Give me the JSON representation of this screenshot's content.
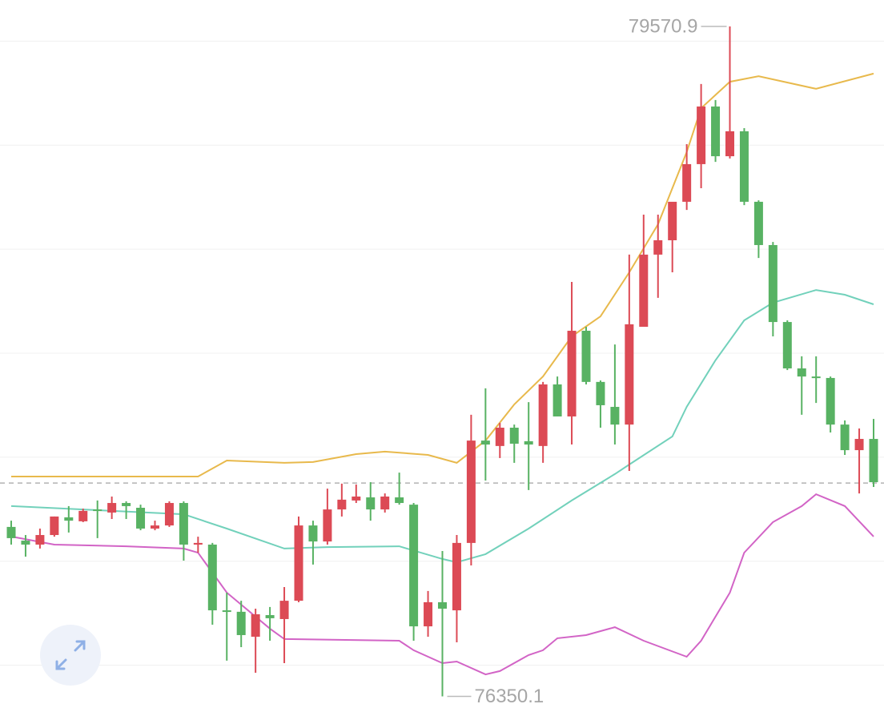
{
  "chart_data": {
    "type": "candlestick",
    "ylim": [
      76256,
      79698
    ],
    "grid_lines": [
      76500,
      77000,
      77500,
      78000,
      78500,
      79000,
      79500
    ],
    "current_price_line": 77376,
    "up_color": "#dc4a55",
    "down_color": "#58b263",
    "open": [
      77165,
      77099,
      77080,
      77126,
      77211,
      77192,
      77249,
      77234,
      77280,
      77257,
      77157,
      77172,
      77280,
      77080,
      77080,
      76764,
      76757,
      76637,
      76741,
      76722,
      76810,
      77172,
      77095,
      77249,
      77292,
      77307,
      77249,
      77307,
      77272,
      76687,
      76803,
      76764,
      77088,
      77580,
      77554,
      77642,
      77577,
      77554,
      77850,
      77696,
      78108,
      77862,
      77742,
      77657,
      78127,
      78474,
      78543,
      78728,
      78909,
      79186,
      78947,
      79067,
      78728,
      78520,
      78150,
      77927,
      77888,
      77881,
      77657,
      77534,
      77588
    ],
    "high": [
      77195,
      77126,
      77157,
      77215,
      77265,
      77253,
      77292,
      77311,
      77288,
      77272,
      77195,
      77288,
      77288,
      77118,
      77088,
      76849,
      76810,
      76772,
      76780,
      76876,
      77215,
      77195,
      77349,
      77373,
      77369,
      77380,
      77326,
      77426,
      77280,
      76857,
      77049,
      77126,
      77704,
      77831,
      77665,
      77657,
      77765,
      77862,
      77888,
      78343,
      78127,
      77869,
      78042,
      78474,
      78666,
      78666,
      78728,
      79005,
      79294,
      79217,
      79570.9,
      79082,
      78735,
      78535,
      78158,
      77985,
      77985,
      77888,
      77677,
      77638,
      77684
    ],
    "low": [
      77080,
      77022,
      77061,
      77118,
      77138,
      77188,
      77111,
      77203,
      77203,
      77149,
      77149,
      77165,
      77003,
      77041,
      76695,
      76522,
      76587,
      76464,
      76618,
      76510,
      76803,
      76984,
      77080,
      77215,
      77280,
      77195,
      77234,
      77272,
      76618,
      76637,
      76350.1,
      76610,
      76980,
      77388,
      77496,
      77473,
      77342,
      77473,
      77696,
      77561,
      77850,
      77642,
      77561,
      77434,
      78127,
      78266,
      78389,
      78689,
      78793,
      78920,
      78936,
      78712,
      78458,
      78081,
      77919,
      77704,
      77761,
      77619,
      77511,
      77326,
      77357
    ],
    "close": [
      77111,
      77080,
      77126,
      77215,
      77195,
      77242,
      77242,
      77280,
      77265,
      77157,
      77172,
      77280,
      77080,
      77088,
      76764,
      76760,
      76645,
      76745,
      76726,
      76810,
      77172,
      77095,
      77249,
      77296,
      77311,
      77249,
      77311,
      77280,
      76687,
      76803,
      76772,
      77088,
      77580,
      77561,
      77642,
      77565,
      77561,
      77850,
      77696,
      78108,
      77862,
      77750,
      77657,
      78139,
      78474,
      78543,
      78728,
      78909,
      79186,
      78947,
      79067,
      78728,
      78520,
      78150,
      77927,
      77888,
      77881,
      77657,
      77534,
      77588,
      77380
    ],
    "overlays": [
      {
        "color": "#e8b94c",
        "x": [
          0,
          13,
          15,
          19,
          21,
          24,
          26,
          29,
          31,
          33,
          35,
          37,
          39,
          41,
          43,
          45,
          47,
          48,
          50,
          52,
          56,
          60
        ],
        "values": [
          77407,
          77407,
          77484,
          77473,
          77477,
          77515,
          77527,
          77511,
          77473,
          77580,
          77754,
          77888,
          78081,
          78177,
          78389,
          78620,
          78967,
          79178,
          79305,
          79332,
          79271,
          79344
        ]
      },
      {
        "color": "#72d1bb",
        "x": [
          0,
          5,
          12,
          15,
          19,
          22,
          27,
          30,
          31,
          33,
          36,
          39,
          42,
          43,
          46,
          47,
          49,
          51,
          53,
          56,
          58,
          60
        ],
        "values": [
          77265,
          77249,
          77226,
          77157,
          77061,
          77068,
          77072,
          77011,
          76995,
          77034,
          77157,
          77292,
          77419,
          77465,
          77600,
          77742,
          77966,
          78158,
          78243,
          78304,
          78281,
          78235
        ]
      },
      {
        "color": "#d264c6",
        "x": [
          0,
          3,
          8,
          12,
          13,
          15,
          18,
          19,
          27,
          28,
          30,
          31,
          33,
          34,
          36,
          37,
          38,
          40,
          42,
          44,
          47,
          48,
          50,
          51,
          53,
          55,
          56,
          58,
          60
        ],
        "values": [
          77119,
          77080,
          77072,
          77061,
          77041,
          76849,
          76676,
          76626,
          76618,
          76572,
          76510,
          76518,
          76456,
          76472,
          76549,
          76572,
          76630,
          76645,
          76683,
          76618,
          76541,
          76618,
          76849,
          77041,
          77188,
          77265,
          77322,
          77265,
          77119
        ]
      }
    ],
    "max_label": "79570.9",
    "min_label": "76350.1"
  }
}
